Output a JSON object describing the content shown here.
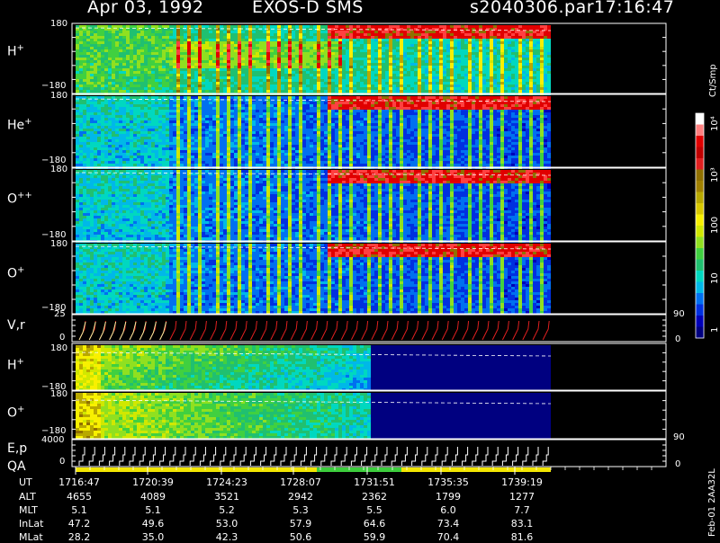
{
  "header": {
    "date": "Apr 03, 1992",
    "instrument": "EXOS-D SMS",
    "file": "s2040306.par",
    "time": "17:16:47"
  },
  "colors": {
    "background": "#000000",
    "text": "#ffffff",
    "vr_trace": "#e02020",
    "ep_trace": "#ffffff",
    "qa_bar": "#f2e600",
    "qa_bar_alt": "#3ccd3c"
  },
  "panels": [
    {
      "id": "h_plus_angle",
      "label": "H",
      "charge": "+",
      "ymax": "180",
      "ymin": "−180"
    },
    {
      "id": "he_plus_angle",
      "label": "He",
      "charge": "+",
      "ymax": "180",
      "ymin": "−180"
    },
    {
      "id": "o_pp_angle",
      "label": "O",
      "charge": "++",
      "ymax": "180",
      "ymin": "−180"
    },
    {
      "id": "o_plus_angle",
      "label": "O",
      "charge": "+",
      "ymax": "180",
      "ymin": "−180"
    },
    {
      "id": "vr",
      "label": "V,r",
      "ymax": "25",
      "ymin": "0",
      "right_top": "90",
      "right_bottom": "0"
    },
    {
      "id": "h_plus_2",
      "label": "H",
      "charge": "+",
      "ymax": "180",
      "ymin": "−180"
    },
    {
      "id": "o_plus_2",
      "label": "O",
      "charge": "+",
      "ymax": "180",
      "ymin": "−180"
    },
    {
      "id": "ep",
      "label": "E,p",
      "ymax": "4000",
      "ymin": "0",
      "right_top": "90",
      "right_bottom": "0"
    }
  ],
  "qa_label": "QA",
  "colorbar": {
    "unit": "Ct/Smp",
    "tick_labels": [
      "10⁴",
      "10³",
      "100",
      "10",
      "1"
    ],
    "scale": "log",
    "range": [
      1,
      10000
    ]
  },
  "chart_data": {
    "type": "heatmap",
    "x_axis": {
      "label": "UT",
      "ticks": [
        "1716:47",
        "1720:39",
        "1724:23",
        "1728:07",
        "1731:51",
        "1735:35",
        "1739:19"
      ]
    },
    "ephemeris": [
      {
        "label": "UT",
        "values": [
          "1716:47",
          "1720:39",
          "1724:23",
          "1728:07",
          "1731:51",
          "1735:35",
          "1739:19"
        ]
      },
      {
        "label": "ALT",
        "values": [
          "4655",
          "4089",
          "3521",
          "2942",
          "2362",
          "1799",
          "1277"
        ]
      },
      {
        "label": "MLT",
        "values": [
          "5.1",
          "5.1",
          "5.2",
          "5.3",
          "5.5",
          "6.0",
          "7.7"
        ]
      },
      {
        "label": "InLat",
        "values": [
          "47.2",
          "49.6",
          "53.0",
          "57.9",
          "64.6",
          "73.4",
          "83.1"
        ]
      },
      {
        "label": "MLat",
        "values": [
          "28.2",
          "35.0",
          "42.3",
          "50.6",
          "59.9",
          "70.4",
          "81.6"
        ]
      }
    ]
  },
  "footer": {
    "side_note": "Feb-01 2AA32L"
  }
}
